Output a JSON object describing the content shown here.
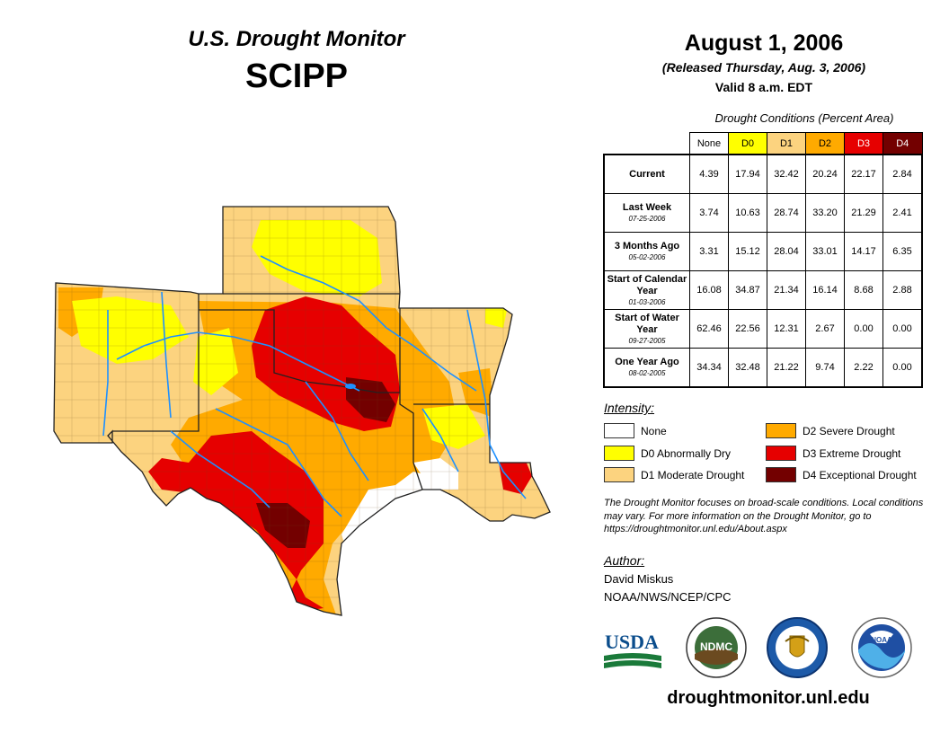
{
  "header": {
    "monitor_title": "U.S. Drought Monitor",
    "region": "SCIPP",
    "date": "August 1, 2006",
    "released": "(Released Thursday, Aug. 3, 2006)",
    "valid": "Valid 8 a.m. EDT"
  },
  "table": {
    "title": "Drought Conditions (Percent Area)",
    "columns": [
      "None",
      "D0",
      "D1",
      "D2",
      "D3",
      "D4"
    ],
    "rows": [
      {
        "label": "Current",
        "sub": "",
        "values": [
          "4.39",
          "17.94",
          "32.42",
          "20.24",
          "22.17",
          "2.84"
        ]
      },
      {
        "label": "Last Week",
        "sub": "07-25-2006",
        "values": [
          "3.74",
          "10.63",
          "28.74",
          "33.20",
          "21.29",
          "2.41"
        ]
      },
      {
        "label": "3 Months Ago",
        "sub": "05-02-2006",
        "values": [
          "3.31",
          "15.12",
          "28.04",
          "33.01",
          "14.17",
          "6.35"
        ]
      },
      {
        "label": "Start of Calendar Year",
        "sub": "01-03-2006",
        "values": [
          "16.08",
          "34.87",
          "21.34",
          "16.14",
          "8.68",
          "2.88"
        ]
      },
      {
        "label": "Start of Water Year",
        "sub": "09-27-2005",
        "values": [
          "62.46",
          "22.56",
          "12.31",
          "2.67",
          "0.00",
          "0.00"
        ]
      },
      {
        "label": "One Year Ago",
        "sub": "08-02-2005",
        "values": [
          "34.34",
          "32.48",
          "21.22",
          "9.74",
          "2.22",
          "0.00"
        ]
      }
    ]
  },
  "intensity": {
    "title": "Intensity:",
    "items": [
      {
        "label": "None",
        "color": "#ffffff"
      },
      {
        "label": "D0 Abnormally Dry",
        "color": "#ffff00"
      },
      {
        "label": "D1 Moderate Drought",
        "color": "#fcd37f"
      },
      {
        "label": "D2 Severe Drought",
        "color": "#ffaa00"
      },
      {
        "label": "D3 Extreme Drought",
        "color": "#e60000"
      },
      {
        "label": "D4 Exceptional Drought",
        "color": "#730000"
      }
    ]
  },
  "note": "The Drought Monitor focuses on broad-scale conditions. Local conditions may vary. For more information on the Drought Monitor, go to https://droughtmonitor.unl.edu/About.aspx",
  "author": {
    "title": "Author:",
    "name": "David Miskus",
    "org": "NOAA/NWS/NCEP/CPC"
  },
  "logos": {
    "usda": "USDA",
    "ndmc": "NDMC",
    "noaa": "NOAA"
  },
  "url": "droughtmonitor.unl.edu",
  "colors": {
    "none": "#ffffff",
    "d0": "#ffff00",
    "d1": "#fcd37f",
    "d2": "#ffaa00",
    "d3": "#e60000",
    "d4": "#730000",
    "river": "#1e90ff"
  }
}
